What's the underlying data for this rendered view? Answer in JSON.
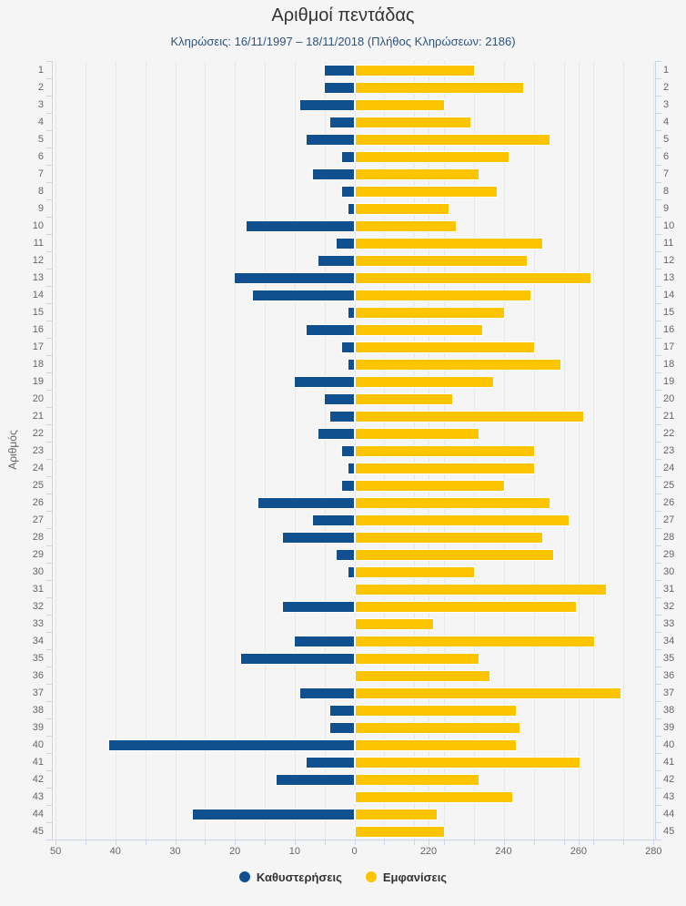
{
  "header": {
    "title": "Αριθμοί πεντάδας",
    "subtitle": "Κληρώσεις: 16/11/1997 – 18/11/2018 (Πλήθος Κληρώσεων: 2186)"
  },
  "colors": {
    "delay_bar": "#11508e",
    "appearance_bar": "#fdc402",
    "background": "#f5f5f5",
    "grid_line": "#e7e7e7",
    "axis_line": "#ccd6eb",
    "title_text": "#333333",
    "subtitle_text": "#2f5480",
    "label_text": "#666666",
    "legend_text": "#333333"
  },
  "chart_data": {
    "type": "bar",
    "orientation": "horizontal-diverging",
    "title": "Αριθμοί πεντάδας",
    "subtitle": "Κληρώσεις: 16/11/1997 – 18/11/2018 (Πλήθος Κληρώσεων: 2186)",
    "ylabel": "Αριθμός",
    "grid": true,
    "legend_position": "bottom",
    "categories": [
      1,
      2,
      3,
      4,
      5,
      6,
      7,
      8,
      9,
      10,
      11,
      12,
      13,
      14,
      15,
      16,
      17,
      18,
      19,
      20,
      21,
      22,
      23,
      24,
      25,
      26,
      27,
      28,
      29,
      30,
      31,
      32,
      33,
      34,
      35,
      36,
      37,
      38,
      39,
      40,
      41,
      42,
      43,
      44,
      45
    ],
    "left_axis": {
      "label_values": [
        50,
        40,
        30,
        20,
        10,
        0
      ],
      "min": 0,
      "max": 50,
      "direction": "leftward"
    },
    "right_axis": {
      "label_values": [
        220,
        240,
        260,
        280
      ],
      "shown_min": 220,
      "max": 280,
      "note": "broken axis, bars start at 0 line"
    },
    "series": [
      {
        "name": "Καθυστερήσεις",
        "color": "#11508e",
        "axis": "left",
        "values": [
          5,
          5,
          9,
          4,
          8,
          2,
          7,
          2,
          1,
          18,
          3,
          6,
          20,
          17,
          1,
          8,
          2,
          1,
          10,
          5,
          4,
          6,
          2,
          1,
          2,
          16,
          7,
          12,
          3,
          1,
          0,
          12,
          0,
          10,
          19,
          0,
          9,
          4,
          4,
          41,
          8,
          13,
          0,
          27,
          0
        ]
      },
      {
        "name": "Εμφανίσεις",
        "color": "#fdc402",
        "axis": "right",
        "values": [
          232,
          245,
          224,
          231,
          252,
          241,
          233,
          238,
          225,
          227,
          250,
          246,
          263,
          247,
          240,
          234,
          248,
          255,
          237,
          226,
          261,
          233,
          248,
          248,
          240,
          252,
          257,
          250,
          253,
          232,
          267,
          259,
          221,
          264,
          233,
          236,
          271,
          243,
          244,
          243,
          260,
          233,
          242,
          222,
          224
        ]
      }
    ]
  }
}
